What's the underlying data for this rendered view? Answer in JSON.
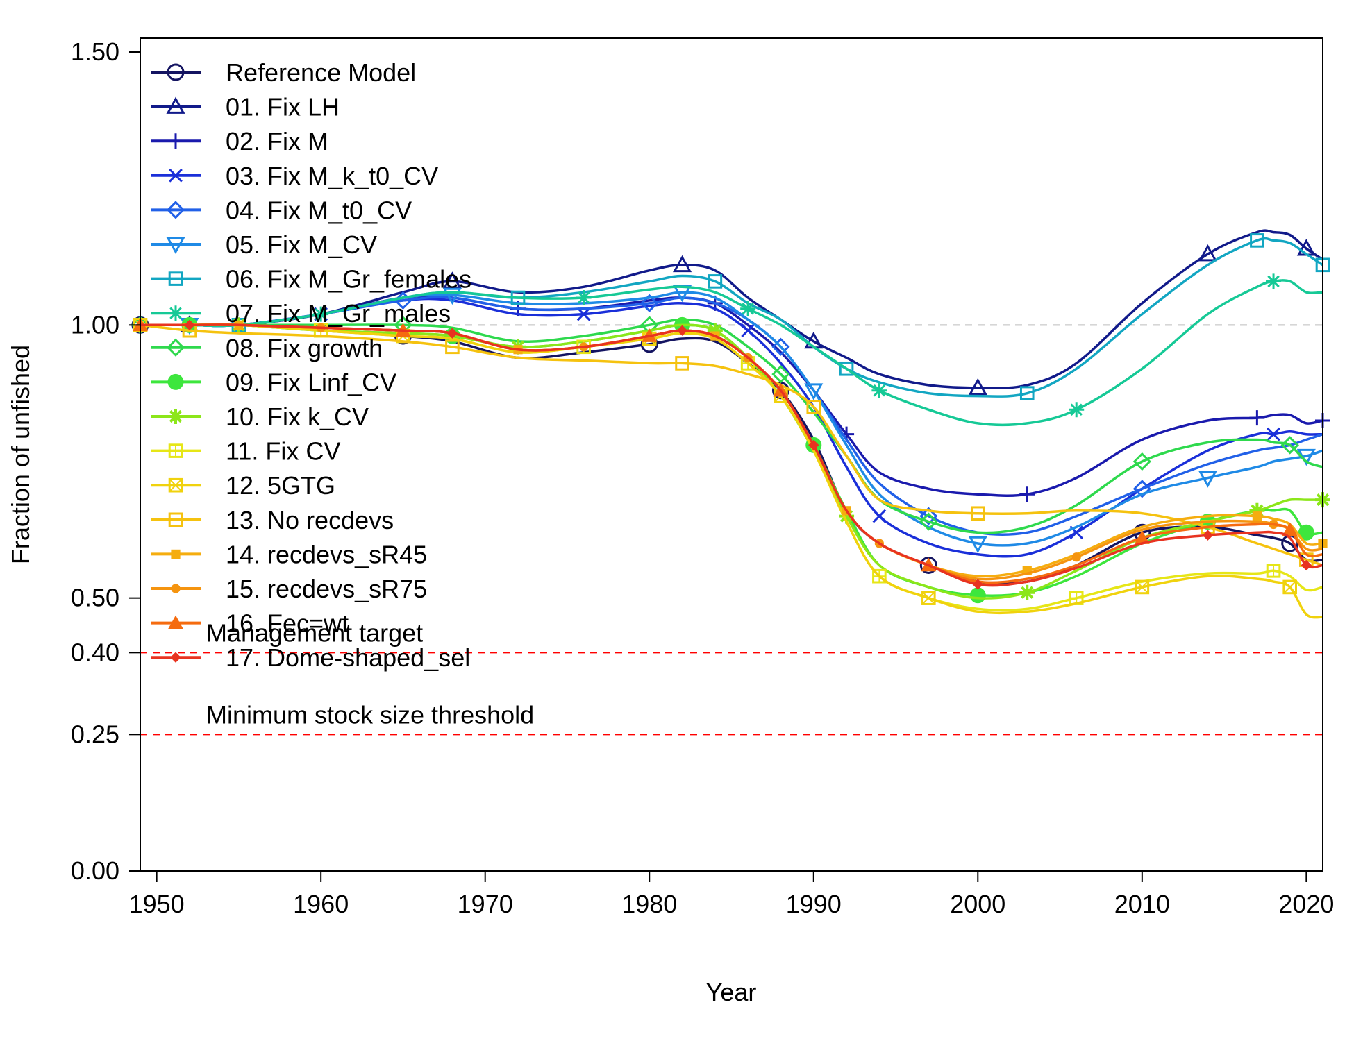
{
  "chart_data": {
    "type": "line",
    "xlabel": "Year",
    "ylabel": "Fraction of unfished",
    "xlim": [
      1949,
      2021
    ],
    "ylim": [
      0,
      1.5
    ],
    "xticks": [
      "1950",
      "1960",
      "1970",
      "1980",
      "1990",
      "2000",
      "2010",
      "2020"
    ],
    "yticks": [
      "0.00",
      "0.25",
      "0.40",
      "0.50",
      "1.00",
      "1.50"
    ],
    "y_tick_values": [
      0,
      0.25,
      0.4,
      0.5,
      1.0,
      1.5
    ],
    "reference_line": {
      "y": 1.0,
      "style": "dashed",
      "color": "#bebebe"
    },
    "thresholds": [
      {
        "label": "Management target",
        "y": 0.4,
        "color": "#ff0000"
      },
      {
        "label": "Minimum stock size threshold",
        "y": 0.25,
        "color": "#ff0000"
      }
    ],
    "x": [
      1949,
      1952,
      1955,
      1960,
      1965,
      1968,
      1972,
      1976,
      1980,
      1982,
      1984,
      1986,
      1988,
      1990,
      1992,
      1994,
      1997,
      2000,
      2003,
      2006,
      2010,
      2014,
      2017,
      2018,
      2019,
      2020,
      2021
    ],
    "series": [
      {
        "name": "Reference Model",
        "color": "#141461",
        "marker": "circle",
        "values": [
          1.0,
          1.0,
          1.0,
          0.99,
          0.98,
          0.97,
          0.94,
          0.95,
          0.965,
          0.975,
          0.97,
          0.93,
          0.88,
          0.79,
          0.66,
          0.6,
          0.56,
          0.53,
          0.53,
          0.56,
          0.62,
          0.63,
          0.615,
          0.61,
          0.6,
          0.57,
          0.57
        ]
      },
      {
        "name": "01. Fix LH",
        "color": "#111a8a",
        "marker": "triangle",
        "values": [
          1.0,
          1.0,
          1.0,
          1.02,
          1.06,
          1.08,
          1.06,
          1.07,
          1.1,
          1.11,
          1.1,
          1.05,
          1.01,
          0.97,
          0.94,
          0.91,
          0.89,
          0.885,
          0.89,
          0.93,
          1.04,
          1.13,
          1.17,
          1.17,
          1.165,
          1.14,
          1.12
        ]
      },
      {
        "name": "02. Fix M",
        "color": "#1a1aad",
        "marker": "plus",
        "values": [
          1.0,
          1.0,
          1.0,
          1.02,
          1.05,
          1.05,
          1.03,
          1.03,
          1.045,
          1.05,
          1.04,
          1.0,
          0.95,
          0.88,
          0.8,
          0.73,
          0.7,
          0.69,
          0.69,
          0.72,
          0.79,
          0.825,
          0.83,
          0.835,
          0.835,
          0.82,
          0.825
        ]
      },
      {
        "name": "03. Fix M_k_t0_CV",
        "color": "#1a2fd9",
        "marker": "x",
        "values": [
          1.0,
          1.0,
          1.0,
          1.02,
          1.045,
          1.045,
          1.02,
          1.02,
          1.035,
          1.04,
          1.03,
          0.99,
          0.93,
          0.85,
          0.74,
          0.65,
          0.6,
          0.58,
          0.58,
          0.62,
          0.7,
          0.77,
          0.8,
          0.8,
          0.805,
          0.8,
          0.8
        ]
      },
      {
        "name": "04. Fix M_t0_CV",
        "color": "#2160e8",
        "marker": "diamond",
        "values": [
          1.0,
          1.0,
          1.0,
          1.02,
          1.045,
          1.05,
          1.03,
          1.03,
          1.04,
          1.05,
          1.04,
          1.01,
          0.96,
          0.88,
          0.79,
          0.71,
          0.65,
          0.62,
          0.62,
          0.65,
          0.7,
          0.745,
          0.77,
          0.775,
          0.78,
          0.79,
          0.8
        ]
      },
      {
        "name": "05. Fix M_CV",
        "color": "#1f8ae6",
        "marker": "triangle-down",
        "values": [
          1.0,
          1.0,
          1.0,
          1.02,
          1.05,
          1.055,
          1.04,
          1.04,
          1.05,
          1.06,
          1.05,
          1.01,
          0.96,
          0.88,
          0.78,
          0.69,
          0.63,
          0.6,
          0.6,
          0.63,
          0.69,
          0.72,
          0.74,
          0.75,
          0.755,
          0.76,
          0.77
        ]
      },
      {
        "name": "06. Fix M_Gr_females",
        "color": "#12a6c2",
        "marker": "square",
        "values": [
          1.0,
          1.0,
          1.0,
          1.02,
          1.05,
          1.06,
          1.05,
          1.06,
          1.08,
          1.09,
          1.08,
          1.04,
          1.01,
          0.96,
          0.92,
          0.895,
          0.875,
          0.87,
          0.875,
          0.92,
          1.02,
          1.11,
          1.155,
          1.155,
          1.15,
          1.13,
          1.11
        ]
      },
      {
        "name": "07. Fix M_Gr_males",
        "color": "#16c996",
        "marker": "asterisk",
        "values": [
          1.0,
          1.0,
          1.0,
          1.02,
          1.05,
          1.06,
          1.05,
          1.05,
          1.065,
          1.07,
          1.06,
          1.03,
          1.0,
          0.96,
          0.92,
          0.88,
          0.845,
          0.82,
          0.82,
          0.845,
          0.92,
          1.02,
          1.07,
          1.08,
          1.08,
          1.06,
          1.06
        ]
      },
      {
        "name": "08. Fix growth",
        "color": "#2ed94d",
        "marker": "diamond",
        "values": [
          1.0,
          1.0,
          1.0,
          1.0,
          1.0,
          0.995,
          0.97,
          0.98,
          1.0,
          1.01,
          1.0,
          0.96,
          0.91,
          0.84,
          0.76,
          0.68,
          0.64,
          0.62,
          0.63,
          0.67,
          0.75,
          0.785,
          0.79,
          0.785,
          0.78,
          0.75,
          0.74
        ]
      },
      {
        "name": "09. Fix Linf_CV",
        "color": "#3de63d",
        "marker": "circle-filled",
        "values": [
          1.0,
          1.0,
          1.0,
          0.99,
          0.985,
          0.98,
          0.96,
          0.97,
          0.99,
          1.0,
          0.99,
          0.94,
          0.88,
          0.78,
          0.66,
          0.56,
          0.52,
          0.505,
          0.51,
          0.54,
          0.6,
          0.64,
          0.66,
          0.66,
          0.66,
          0.62,
          0.62
        ]
      },
      {
        "name": "10. Fix k_CV",
        "color": "#8ce61a",
        "marker": "star",
        "values": [
          1.0,
          1.0,
          1.0,
          0.99,
          0.985,
          0.98,
          0.96,
          0.97,
          0.99,
          1.0,
          0.99,
          0.94,
          0.87,
          0.77,
          0.65,
          0.56,
          0.52,
          0.5,
          0.51,
          0.55,
          0.61,
          0.64,
          0.66,
          0.67,
          0.68,
          0.68,
          0.68
        ]
      },
      {
        "name": "11. Fix CV",
        "color": "#e6e617",
        "marker": "square-cross",
        "values": [
          1.0,
          1.0,
          1.0,
          0.99,
          0.98,
          0.975,
          0.95,
          0.96,
          0.975,
          0.985,
          0.975,
          0.93,
          0.87,
          0.77,
          0.64,
          0.54,
          0.5,
          0.48,
          0.48,
          0.5,
          0.53,
          0.545,
          0.545,
          0.55,
          0.54,
          0.515,
          0.52
        ]
      },
      {
        "name": "12. 5GTG",
        "color": "#f0d20d",
        "marker": "square-x",
        "values": [
          1.0,
          1.0,
          1.0,
          0.99,
          0.98,
          0.975,
          0.95,
          0.96,
          0.975,
          0.985,
          0.975,
          0.93,
          0.87,
          0.77,
          0.64,
          0.54,
          0.5,
          0.475,
          0.475,
          0.49,
          0.52,
          0.54,
          0.535,
          0.53,
          0.52,
          0.47,
          0.465
        ]
      },
      {
        "name": "13. No recdevs",
        "color": "#f5c20f",
        "marker": "square",
        "values": [
          1.0,
          0.99,
          0.985,
          0.98,
          0.97,
          0.96,
          0.94,
          0.935,
          0.93,
          0.93,
          0.925,
          0.91,
          0.89,
          0.85,
          0.76,
          0.68,
          0.66,
          0.655,
          0.655,
          0.66,
          0.655,
          0.63,
          0.6,
          0.59,
          0.58,
          0.57,
          0.56
        ]
      },
      {
        "name": "14. recdevs_sR45",
        "color": "#f5ad0f",
        "marker": "square-small",
        "values": [
          1.0,
          1.0,
          1.0,
          0.995,
          0.99,
          0.985,
          0.955,
          0.96,
          0.98,
          0.99,
          0.98,
          0.94,
          0.88,
          0.78,
          0.66,
          0.6,
          0.56,
          0.54,
          0.55,
          0.58,
          0.63,
          0.65,
          0.65,
          0.645,
          0.635,
          0.6,
          0.6
        ]
      },
      {
        "name": "15. recdevs_sR75",
        "color": "#f5940f",
        "marker": "dot",
        "values": [
          1.0,
          1.0,
          1.0,
          0.995,
          0.99,
          0.985,
          0.955,
          0.96,
          0.98,
          0.99,
          0.98,
          0.94,
          0.88,
          0.78,
          0.66,
          0.6,
          0.56,
          0.535,
          0.545,
          0.575,
          0.625,
          0.64,
          0.64,
          0.635,
          0.625,
          0.59,
          0.59
        ]
      },
      {
        "name": "16. Fec=wt",
        "color": "#f56b0f",
        "marker": "triangle-filled",
        "values": [
          1.0,
          1.0,
          1.0,
          0.995,
          0.99,
          0.985,
          0.955,
          0.96,
          0.98,
          0.99,
          0.98,
          0.94,
          0.88,
          0.78,
          0.66,
          0.6,
          0.56,
          0.53,
          0.535,
          0.56,
          0.61,
          0.63,
          0.635,
          0.635,
          0.625,
          0.58,
          0.58
        ]
      },
      {
        "name": "17. Dome-shaped_sel",
        "color": "#e83320",
        "marker": "diamond-small",
        "values": [
          1.0,
          1.0,
          1.0,
          0.995,
          0.99,
          0.985,
          0.955,
          0.96,
          0.98,
          0.99,
          0.98,
          0.94,
          0.88,
          0.78,
          0.66,
          0.6,
          0.56,
          0.525,
          0.53,
          0.555,
          0.6,
          0.615,
          0.62,
          0.62,
          0.61,
          0.56,
          0.56
        ]
      }
    ]
  }
}
